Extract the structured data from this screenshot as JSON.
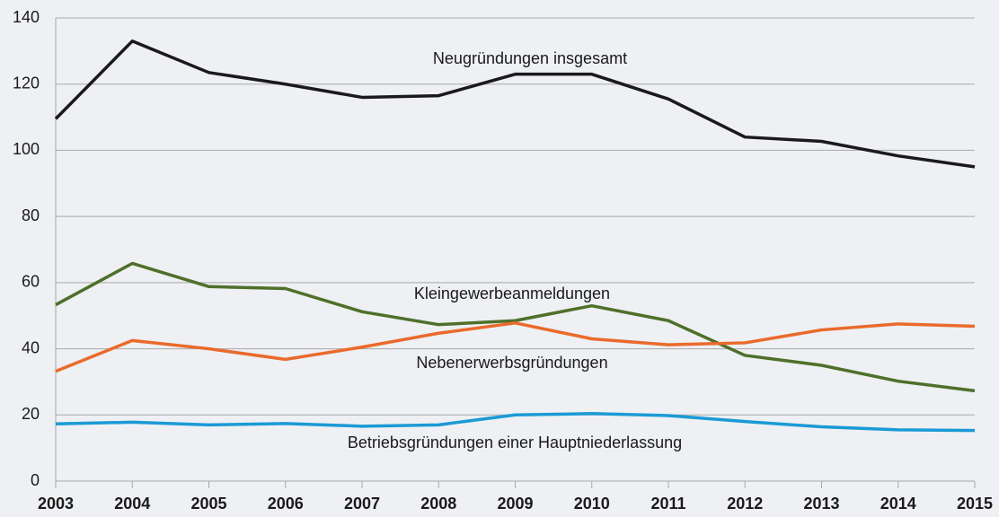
{
  "chart_data": {
    "type": "line",
    "categories": [
      "2003",
      "2004",
      "2005",
      "2006",
      "2007",
      "2008",
      "2009",
      "2010",
      "2011",
      "2012",
      "2013",
      "2014",
      "2015"
    ],
    "series": [
      {
        "name": "Neugründungen insgesamt",
        "color": "#1a1a1a",
        "values": [
          109.5,
          133,
          123.5,
          120,
          116,
          116.5,
          123,
          123,
          115.5,
          104,
          102.7,
          98.3,
          95
        ]
      },
      {
        "name": "Kleingewerbeanmeldungen",
        "color": "#4f6f2a",
        "values": [
          53.3,
          65.8,
          58.8,
          58.2,
          51.2,
          47.3,
          48.5,
          53,
          48.5,
          38,
          35,
          30.2,
          27.3
        ]
      },
      {
        "name": "Nebenerwerbsgründungen",
        "color": "#ea6a2b",
        "values": [
          33.2,
          42.5,
          40,
          36.8,
          40.5,
          44.7,
          47.8,
          43,
          41.2,
          41.8,
          45.7,
          47.5,
          46.8
        ]
      },
      {
        "name": "Betriebsgründungen einer Hauptniederlassung",
        "color": "#1b9ad6",
        "values": [
          17.3,
          17.8,
          17,
          17.4,
          16.6,
          17,
          20,
          20.4,
          19.8,
          18,
          16.4,
          15.5,
          15.3
        ]
      }
    ],
    "ylim": [
      0,
      140
    ],
    "yticks": [
      0,
      20,
      40,
      60,
      80,
      100,
      120,
      140
    ],
    "grid": true
  }
}
